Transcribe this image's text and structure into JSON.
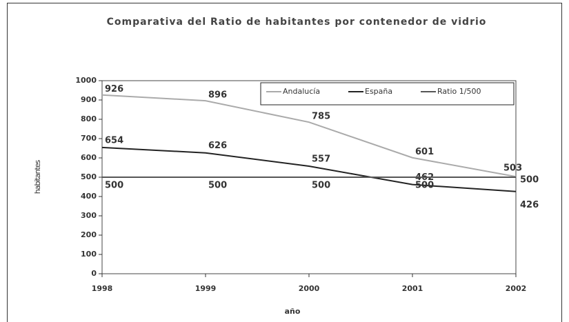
{
  "chart_data": {
    "type": "line",
    "title": "Comparativa del Ratio de habitantes por contenedor de vidrio",
    "xlabel": "año",
    "ylabel": "habitantes",
    "x": [
      1998,
      1999,
      2000,
      2001,
      2002
    ],
    "series": [
      {
        "name": "Andalucía",
        "color": "#aaaaaa",
        "values": [
          926,
          896,
          785,
          601,
          503
        ]
      },
      {
        "name": "España",
        "color": "#222222",
        "values": [
          654,
          626,
          557,
          462,
          426
        ]
      },
      {
        "name": "Ratio 1/500",
        "color": "#555555",
        "values": [
          500,
          500,
          500,
          500,
          500
        ]
      }
    ],
    "xlim": [
      1998,
      2002
    ],
    "xticks": [
      1998,
      1999,
      2000,
      2001,
      2002
    ],
    "ylim": [
      0,
      1000
    ],
    "yticks": [
      0,
      100,
      200,
      300,
      400,
      500,
      600,
      700,
      800,
      900,
      1000
    ],
    "legend": "top-right"
  }
}
